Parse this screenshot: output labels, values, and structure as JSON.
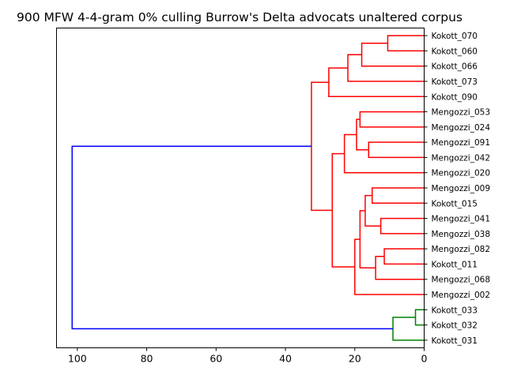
{
  "chart_data": {
    "type": "dendrogram",
    "title": "900 MFW 4-4-gram 0% culling Burrow's Delta advocats unaltered corpus",
    "orientation": "left",
    "xlim": [
      106,
      0
    ],
    "xticks": [
      100,
      80,
      60,
      40,
      20,
      0
    ],
    "leaves": [
      "Kokott_070",
      "Kokott_060",
      "Kokott_066",
      "Kokott_073",
      "Kokott_090",
      "Mengozzi_053",
      "Mengozzi_024",
      "Mengozzi_091",
      "Mengozzi_042",
      "Mengozzi_020",
      "Mengozzi_009",
      "Kokott_015",
      "Mengozzi_041",
      "Mengozzi_038",
      "Mengozzi_082",
      "Kokott_011",
      "Mengozzi_068",
      "Mengozzi_002",
      "Kokott_033",
      "Kokott_032",
      "Kokott_031"
    ],
    "merges": [
      {
        "id": "n1",
        "a": "Kokott_070",
        "b": "Kokott_060",
        "height": 10.5,
        "color": "#ff0000"
      },
      {
        "id": "n2",
        "a": "n1",
        "b": "Kokott_066",
        "height": 18.0,
        "color": "#ff0000"
      },
      {
        "id": "n3",
        "a": "n2",
        "b": "Kokott_073",
        "height": 22.0,
        "color": "#ff0000"
      },
      {
        "id": "n4",
        "a": "n3",
        "b": "Kokott_090",
        "height": 27.5,
        "color": "#ff0000"
      },
      {
        "id": "n5",
        "a": "Mengozzi_053",
        "b": "Mengozzi_024",
        "height": 18.5,
        "color": "#ff0000"
      },
      {
        "id": "n6",
        "a": "Mengozzi_091",
        "b": "Mengozzi_042",
        "height": 16.0,
        "color": "#ff0000"
      },
      {
        "id": "n7",
        "a": "n5",
        "b": "n6",
        "height": 19.5,
        "color": "#ff0000"
      },
      {
        "id": "n8",
        "a": "n7",
        "b": "Mengozzi_020",
        "height": 23.0,
        "color": "#ff0000"
      },
      {
        "id": "n9",
        "a": "Mengozzi_009",
        "b": "Kokott_015",
        "height": 15.0,
        "color": "#ff0000"
      },
      {
        "id": "n10",
        "a": "Mengozzi_041",
        "b": "Mengozzi_038",
        "height": 12.5,
        "color": "#ff0000"
      },
      {
        "id": "n11",
        "a": "n9",
        "b": "n10",
        "height": 17.0,
        "color": "#ff0000"
      },
      {
        "id": "n12",
        "a": "Mengozzi_082",
        "b": "Kokott_011",
        "height": 11.5,
        "color": "#ff0000"
      },
      {
        "id": "n13",
        "a": "n12",
        "b": "Mengozzi_068",
        "height": 14.0,
        "color": "#ff0000"
      },
      {
        "id": "n14",
        "a": "n11",
        "b": "n13",
        "height": 18.5,
        "color": "#ff0000"
      },
      {
        "id": "n15",
        "a": "n14",
        "b": "Mengozzi_002",
        "height": 20.0,
        "color": "#ff0000"
      },
      {
        "id": "n16",
        "a": "n8",
        "b": "n15",
        "height": 26.5,
        "color": "#ff0000"
      },
      {
        "id": "n17",
        "a": "n4",
        "b": "n16",
        "height": 32.5,
        "color": "#ff0000"
      },
      {
        "id": "n18",
        "a": "Kokott_033",
        "b": "Kokott_032",
        "height": 2.5,
        "color": "#008000"
      },
      {
        "id": "n19",
        "a": "n18",
        "b": "Kokott_031",
        "height": 9.0,
        "color": "#008000"
      },
      {
        "id": "n20",
        "a": "n17",
        "b": "n19",
        "height": 101.5,
        "color": "#0000ff"
      }
    ]
  }
}
